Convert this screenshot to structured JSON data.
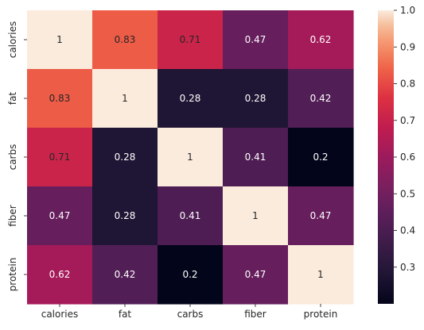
{
  "chart_data": {
    "type": "heatmap",
    "title": "",
    "xlabel": "",
    "ylabel": "",
    "x_categories": [
      "calories",
      "fat",
      "carbs",
      "fiber",
      "protein"
    ],
    "y_categories": [
      "calories",
      "fat",
      "carbs",
      "fiber",
      "protein"
    ],
    "values": [
      [
        1,
        0.83,
        0.71,
        0.47,
        0.62
      ],
      [
        0.83,
        1,
        0.28,
        0.28,
        0.42
      ],
      [
        0.71,
        0.28,
        1,
        0.41,
        0.2
      ],
      [
        0.47,
        0.28,
        0.41,
        1,
        0.47
      ],
      [
        0.62,
        0.42,
        0.2,
        0.47,
        1
      ]
    ],
    "annotations": [
      [
        "1",
        "0.83",
        "0.71",
        "0.47",
        "0.62"
      ],
      [
        "0.83",
        "1",
        "0.28",
        "0.28",
        "0.42"
      ],
      [
        "0.71",
        "0.28",
        "1",
        "0.41",
        "0.2"
      ],
      [
        "0.47",
        "0.28",
        "0.41",
        "1",
        "0.47"
      ],
      [
        "0.62",
        "0.42",
        "0.2",
        "0.47",
        "1"
      ]
    ],
    "colorbar": {
      "vmin": 0.2,
      "vmax": 1.0,
      "ticks": [
        0.3,
        0.4,
        0.5,
        0.6,
        0.7,
        0.8,
        0.9,
        1.0
      ],
      "tick_labels": [
        "0.3",
        "0.4",
        "0.5",
        "0.6",
        "0.7",
        "0.8",
        "0.9",
        "1.0"
      ],
      "colormap": "rocket"
    }
  }
}
